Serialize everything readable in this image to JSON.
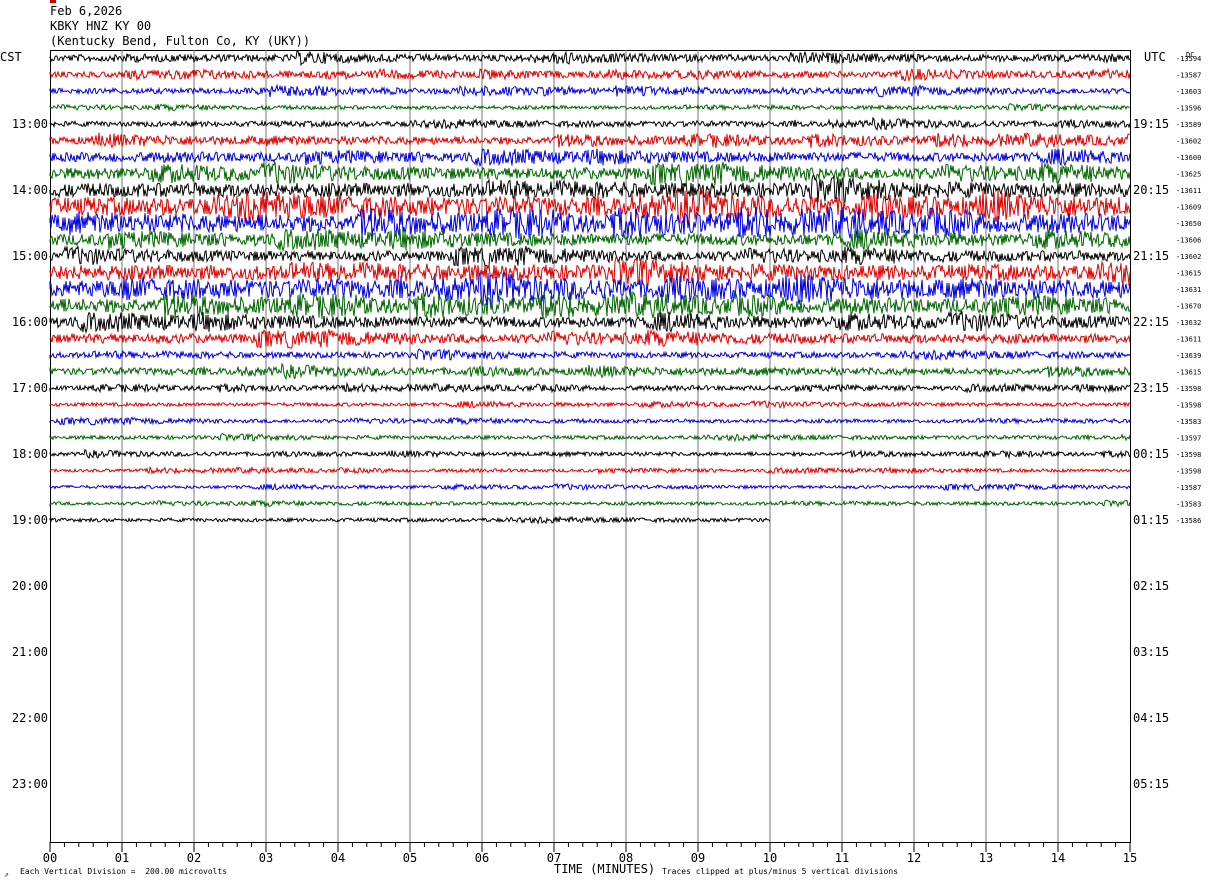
{
  "header": {
    "date": "Feb 6,2026",
    "station": "KBKY HNZ KY 00",
    "location": "(Kentucky Bend, Fulton Co, KY (UKY))"
  },
  "left_timezone": "CST",
  "right_timezone": "UTC",
  "dc_label": "DC",
  "footer": {
    "scale_note": "Each Vertical Division =  200.00 microvolts",
    "clip_note": "Traces clipped at plus/minus 5 vertical divisions",
    "corner_mark": "⇗"
  },
  "colors": [
    "#000000",
    "#e00000",
    "#0000e0",
    "#006600"
  ],
  "chart_data": {
    "type": "line",
    "title": "KBKY HNZ KY 00",
    "xlabel": "TIME (MINUTES)",
    "ylabel": "",
    "x_ticks": [
      "00",
      "01",
      "02",
      "03",
      "04",
      "05",
      "06",
      "07",
      "08",
      "09",
      "10",
      "11",
      "12",
      "13",
      "14",
      "15"
    ],
    "xlim": [
      0,
      15
    ],
    "left_hour_labels": [
      "13:00",
      "14:00",
      "15:00",
      "16:00",
      "17:00",
      "18:00",
      "19:00",
      "20:00",
      "21:00",
      "22:00",
      "23:00"
    ],
    "right_hour_labels": [
      "19:15",
      "20:15",
      "21:15",
      "22:15",
      "23:15",
      "00:15",
      "01:15",
      "02:15",
      "03:15",
      "04:15",
      "05:15"
    ],
    "rows_per_hour": 4,
    "first_row_start": "12:00",
    "dc_offsets": [
      "-13594",
      "-13587",
      "-13603",
      "-13596",
      "-13589",
      "-13602",
      "-13600",
      "-13625",
      "-13611",
      "-13609",
      "-13650",
      "-13606",
      "-13602",
      "-13615",
      "-13631",
      "-13670",
      "-13632",
      "-13611",
      "-13639",
      "-13615",
      "-13598",
      "-13598",
      "-13583",
      "-13597",
      "-13598",
      "-13598",
      "-13587",
      "-13583",
      "-13586"
    ],
    "row_noise_levels": [
      0.3,
      0.25,
      0.22,
      0.1,
      0.2,
      0.35,
      0.45,
      0.6,
      0.75,
      0.95,
      0.95,
      0.6,
      0.5,
      0.8,
      0.95,
      0.75,
      0.55,
      0.45,
      0.22,
      0.28,
      0.15,
      0.1,
      0.1,
      0.1,
      0.1,
      0.07,
      0.07,
      0.08,
      0.1
    ],
    "last_row_end_minute": 10.0
  }
}
